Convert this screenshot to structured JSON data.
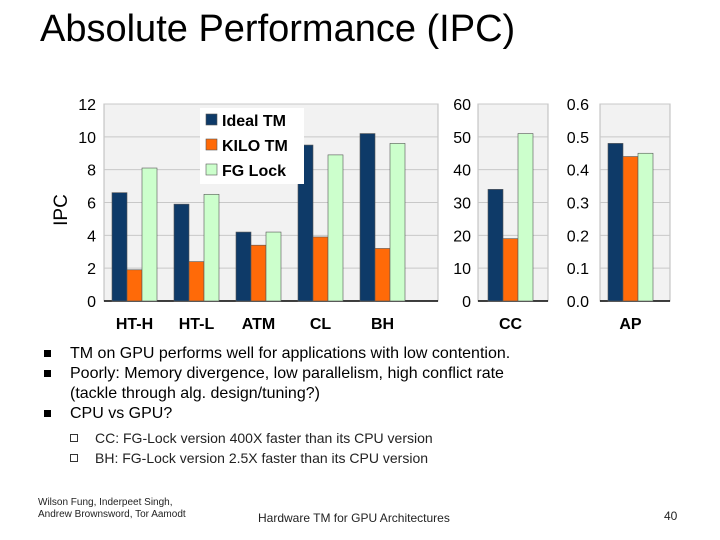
{
  "slide": {
    "title": "Absolute Performance (IPC)",
    "bullets": [
      {
        "text": "TM on GPU performs well for applications with low contention."
      },
      {
        "text": "Poorly: Memory divergence, low parallelism, high conflict rate"
      },
      {
        "text": "(tackle through alg. design/tuning?)",
        "continuation": true
      },
      {
        "text": "CPU vs GPU?"
      }
    ],
    "subbullets": [
      {
        "text": "CC: FG-Lock version 400X faster than its CPU version"
      },
      {
        "text": "BH: FG-Lock version 2.5X faster than its CPU version"
      }
    ],
    "footer": {
      "authors_line1": "Wilson Fung, Inderpeet Singh,",
      "authors_line2": "Andrew Brownsword, Tor Aamodt",
      "center": "Hardware TM for GPU Architectures",
      "page": "40"
    }
  },
  "chart_data": {
    "type": "bar",
    "ylabel": "IPC",
    "colors": {
      "Ideal TM": "#0e3a68",
      "KILO TM": "#ff6a08",
      "FG Lock": "#ccffcc"
    },
    "legend": [
      "Ideal TM",
      "KILO TM",
      "FG Lock"
    ],
    "panels": [
      {
        "categories": [
          "HT-H",
          "HT-L",
          "ATM",
          "CL",
          "BH"
        ],
        "ylim": [
          0,
          12
        ],
        "ticks": [
          "0",
          "2",
          "4",
          "6",
          "8",
          "10",
          "12"
        ],
        "series": [
          {
            "name": "Ideal TM",
            "values": [
              6.6,
              5.9,
              4.2,
              9.5,
              10.2
            ]
          },
          {
            "name": "KILO TM",
            "values": [
              1.9,
              2.4,
              3.4,
              3.9,
              3.2
            ]
          },
          {
            "name": "FG Lock",
            "values": [
              8.1,
              6.5,
              4.2,
              8.9,
              9.6
            ]
          }
        ]
      },
      {
        "categories": [
          "CC"
        ],
        "ylim": [
          0,
          60
        ],
        "ticks": [
          "0",
          "10",
          "20",
          "30",
          "40",
          "50",
          "60"
        ],
        "series": [
          {
            "name": "Ideal TM",
            "values": [
              34
            ]
          },
          {
            "name": "KILO TM",
            "values": [
              19
            ]
          },
          {
            "name": "FG Lock",
            "values": [
              51
            ]
          }
        ]
      },
      {
        "categories": [
          "AP"
        ],
        "ylim": [
          0,
          0.6
        ],
        "ticks": [
          "0.0",
          "0.1",
          "0.2",
          "0.3",
          "0.4",
          "0.5",
          "0.6"
        ],
        "series": [
          {
            "name": "Ideal TM",
            "values": [
              0.48
            ]
          },
          {
            "name": "KILO TM",
            "values": [
              0.44
            ]
          },
          {
            "name": "FG Lock",
            "values": [
              0.45
            ]
          }
        ]
      }
    ]
  }
}
